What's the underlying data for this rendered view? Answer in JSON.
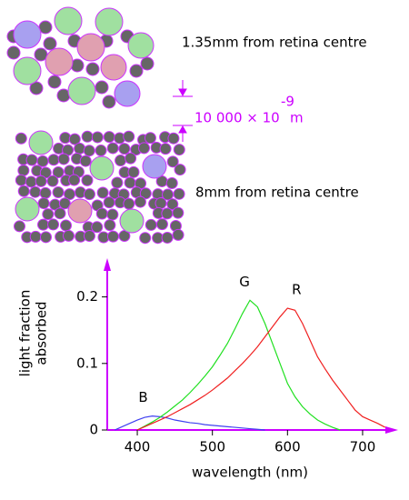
{
  "diagram": {
    "mosaic_labels": [
      "1.35mm from retina centre",
      "8mm from retina centre"
    ],
    "scale": {
      "text": "10 000 × 10",
      "exponent": "-9",
      "unit": "m"
    }
  },
  "chart_data": {
    "type": "line",
    "xlabel": "wavelength (nm)",
    "ylabel": [
      "light fraction",
      "absorbed"
    ],
    "xlim": [
      360,
      740
    ],
    "ylim": [
      0,
      0.25
    ],
    "xticks": [
      400,
      500,
      600,
      700
    ],
    "yticks": [
      0,
      0.1,
      0.2
    ],
    "x": [
      370,
      380,
      390,
      400,
      410,
      420,
      430,
      440,
      450,
      460,
      470,
      480,
      490,
      500,
      510,
      520,
      530,
      540,
      550,
      560,
      570,
      580,
      590,
      600,
      610,
      620,
      630,
      640,
      650,
      660,
      670,
      680,
      690,
      700,
      710,
      720,
      730
    ],
    "series": [
      {
        "name": "B",
        "color": "#4040f0",
        "values": [
          0,
          0.005,
          0.01,
          0.015,
          0.019,
          0.021,
          0.02,
          0.018,
          0.015,
          0.013,
          0.011,
          0.01,
          0.008,
          0.007,
          0.006,
          0.005,
          0.004,
          0.003,
          0.002,
          0.001,
          0,
          null,
          null,
          null,
          null,
          null,
          null,
          null,
          null,
          null,
          null,
          null,
          null,
          null,
          null,
          null,
          null
        ]
      },
      {
        "name": "G",
        "color": "#20e020",
        "values": [
          null,
          null,
          null,
          0,
          0.006,
          0.012,
          0.019,
          0.027,
          0.036,
          0.045,
          0.056,
          0.068,
          0.081,
          0.095,
          0.112,
          0.13,
          0.152,
          0.175,
          0.195,
          0.185,
          0.16,
          0.13,
          0.1,
          0.07,
          0.05,
          0.035,
          0.024,
          0.015,
          0.009,
          0.004,
          0,
          null,
          null,
          null,
          null,
          null,
          null
        ]
      },
      {
        "name": "R",
        "color": "#f02020",
        "values": [
          null,
          null,
          null,
          0,
          0.005,
          0.01,
          0.015,
          0.02,
          0.026,
          0.032,
          0.038,
          0.045,
          0.052,
          0.06,
          0.069,
          0.078,
          0.089,
          0.1,
          0.112,
          0.125,
          0.14,
          0.155,
          0.17,
          0.183,
          0.18,
          0.16,
          0.135,
          0.11,
          0.092,
          0.075,
          0.06,
          0.045,
          0.03,
          0.02,
          0.015,
          0.01,
          0.004
        ]
      }
    ]
  }
}
